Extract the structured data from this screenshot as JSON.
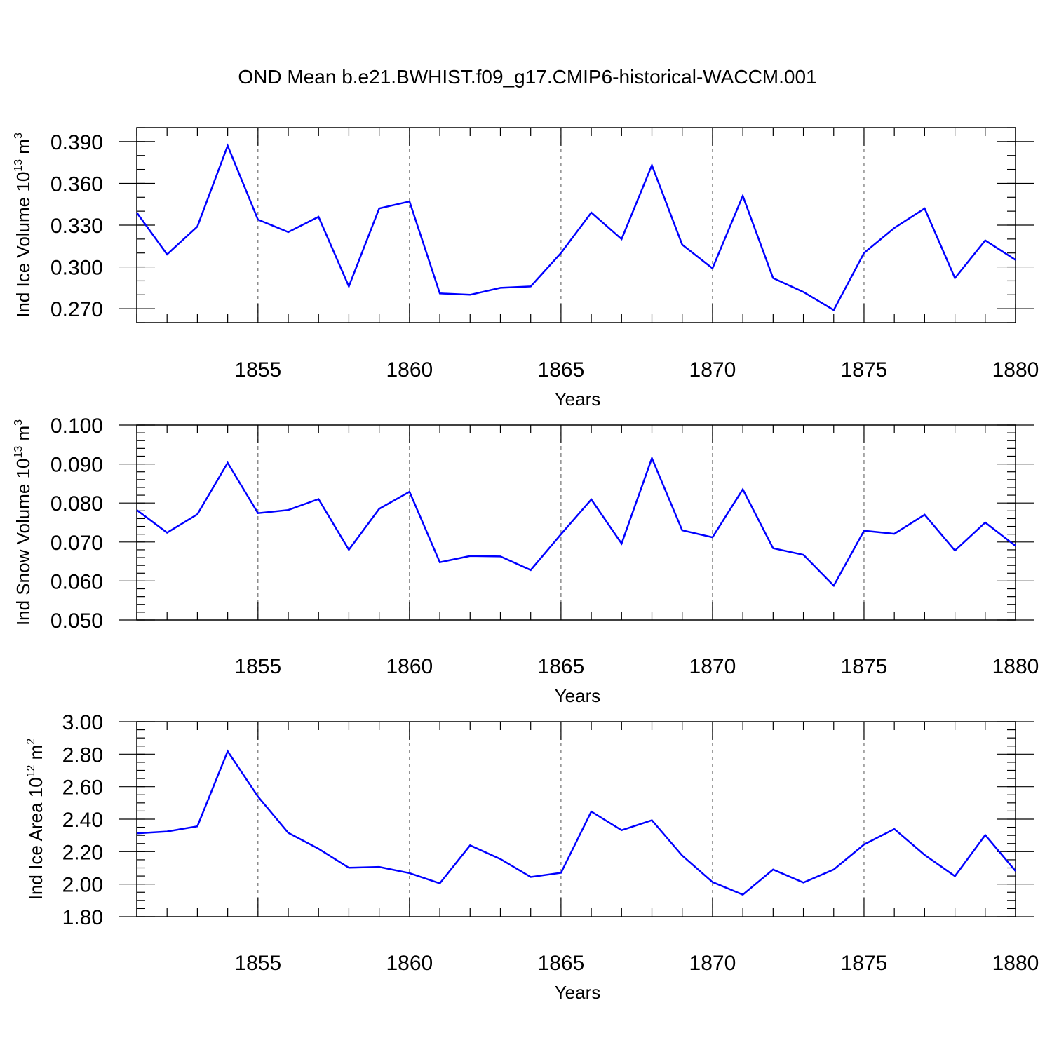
{
  "title": "OND Mean b.e21.BWHIST.f09_g17.CMIP6-historical-WACCM.001",
  "chart_data": [
    {
      "type": "line",
      "ylabel": {
        "text": "Ind Ice Volume 10",
        "exp": "13",
        "unit": " m",
        "unit_exp": "3"
      },
      "xlabel": "Years",
      "xlim": [
        1851,
        1880
      ],
      "ylim": [
        0.26,
        0.4
      ],
      "yticks": [
        0.27,
        0.3,
        0.33,
        0.36,
        0.39
      ],
      "yticklabels": [
        "0.270",
        "0.300",
        "0.330",
        "0.360",
        "0.390"
      ],
      "yminor_step": 0.01,
      "xticks": [
        1855,
        1860,
        1865,
        1870,
        1875,
        1880
      ],
      "xticklabels": [
        "1855",
        "1860",
        "1865",
        "1870",
        "1875",
        "1880"
      ],
      "grid": "vertical-dashed",
      "color": "#0000ff",
      "x": [
        1851,
        1852,
        1853,
        1854,
        1855,
        1856,
        1857,
        1858,
        1859,
        1860,
        1861,
        1862,
        1863,
        1864,
        1865,
        1866,
        1867,
        1868,
        1869,
        1870,
        1871,
        1872,
        1873,
        1874,
        1875,
        1876,
        1877,
        1878,
        1879,
        1880
      ],
      "values": [
        0.339,
        0.309,
        0.329,
        0.387,
        0.334,
        0.325,
        0.336,
        0.286,
        0.342,
        0.347,
        0.281,
        0.28,
        0.285,
        0.286,
        0.31,
        0.339,
        0.32,
        0.373,
        0.316,
        0.299,
        0.351,
        0.292,
        0.282,
        0.269,
        0.31,
        0.328,
        0.342,
        0.292,
        0.319,
        0.305
      ]
    },
    {
      "type": "line",
      "ylabel": {
        "text": "Ind Snow Volume 10",
        "exp": "13",
        "unit": " m",
        "unit_exp": "3"
      },
      "xlabel": "Years",
      "xlim": [
        1851,
        1880
      ],
      "ylim": [
        0.05,
        0.1
      ],
      "yticks": [
        0.05,
        0.06,
        0.07,
        0.08,
        0.09,
        0.1
      ],
      "yticklabels": [
        "0.050",
        "0.060",
        "0.070",
        "0.080",
        "0.090",
        "0.100"
      ],
      "yminor_step": 0.002,
      "xticks": [
        1855,
        1860,
        1865,
        1870,
        1875,
        1880
      ],
      "xticklabels": [
        "1855",
        "1860",
        "1865",
        "1870",
        "1875",
        "1880"
      ],
      "grid": "vertical-dashed",
      "color": "#0000ff",
      "x": [
        1851,
        1852,
        1853,
        1854,
        1855,
        1856,
        1857,
        1858,
        1859,
        1860,
        1861,
        1862,
        1863,
        1864,
        1865,
        1866,
        1867,
        1868,
        1869,
        1870,
        1871,
        1872,
        1873,
        1874,
        1875,
        1876,
        1877,
        1878,
        1879,
        1880
      ],
      "values": [
        0.0782,
        0.0724,
        0.0771,
        0.0903,
        0.0774,
        0.0782,
        0.081,
        0.068,
        0.0785,
        0.0829,
        0.0648,
        0.0664,
        0.0663,
        0.0628,
        0.072,
        0.0809,
        0.0696,
        0.0915,
        0.073,
        0.0712,
        0.0835,
        0.0684,
        0.0667,
        0.0588,
        0.0729,
        0.0721,
        0.077,
        0.0678,
        0.075,
        0.069
      ]
    },
    {
      "type": "line",
      "ylabel": {
        "text": "Ind Ice Area 10",
        "exp": "12",
        "unit": " m",
        "unit_exp": "2"
      },
      "xlabel": "Years",
      "xlim": [
        1851,
        1880
      ],
      "ylim": [
        1.8,
        3.0
      ],
      "yticks": [
        1.8,
        2.0,
        2.2,
        2.4,
        2.6,
        2.8,
        3.0
      ],
      "yticklabels": [
        "1.80",
        "2.00",
        "2.20",
        "2.40",
        "2.60",
        "2.80",
        "3.00"
      ],
      "yminor_step": 0.05,
      "xticks": [
        1855,
        1860,
        1865,
        1870,
        1875,
        1880
      ],
      "xticklabels": [
        "1855",
        "1860",
        "1865",
        "1870",
        "1875",
        "1880"
      ],
      "grid": "vertical-dashed",
      "color": "#0000ff",
      "x": [
        1851,
        1852,
        1853,
        1854,
        1855,
        1856,
        1857,
        1858,
        1859,
        1860,
        1861,
        1862,
        1863,
        1864,
        1865,
        1866,
        1867,
        1868,
        1869,
        1870,
        1871,
        1872,
        1873,
        1874,
        1875,
        1876,
        1877,
        1878,
        1879,
        1880
      ],
      "values": [
        2.313,
        2.324,
        2.356,
        2.818,
        2.539,
        2.316,
        2.218,
        2.101,
        2.106,
        2.068,
        2.005,
        2.239,
        2.155,
        2.044,
        2.07,
        2.447,
        2.332,
        2.393,
        2.176,
        2.013,
        1.935,
        2.09,
        2.01,
        2.09,
        2.244,
        2.339,
        2.18,
        2.049,
        2.302,
        2.081
      ]
    }
  ]
}
